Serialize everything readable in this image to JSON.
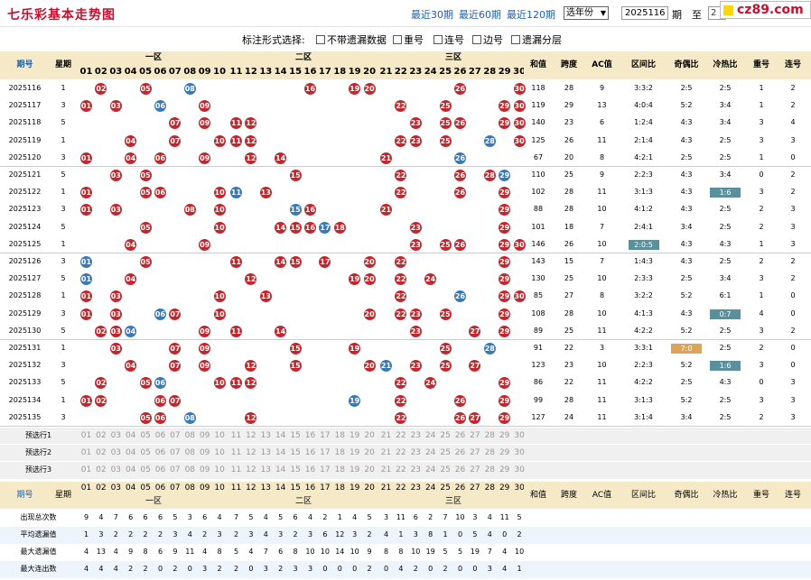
{
  "header": {
    "title": "七乐彩基本走势图",
    "quick": [
      "最近30期",
      "最近60期",
      "最近120期"
    ],
    "year_select": "选年份",
    "from_label": "2025116",
    "issue_label": "期",
    "to_label": "至",
    "to_value": "2",
    "logo": "cz89.com"
  },
  "options": {
    "label": "标注形式选择:",
    "items": [
      "不带遗漏数据",
      "重号",
      "连号",
      "边号",
      "遗漏分层"
    ]
  },
  "table": {
    "head": {
      "issue": "期号",
      "week": "星期",
      "zones": [
        "一区",
        "二区",
        "三区"
      ],
      "stats": [
        "和值",
        "跨度",
        "AC值",
        "区间比",
        "奇偶比",
        "冷热比",
        "重号",
        "连号"
      ]
    },
    "numbers": [
      "01",
      "02",
      "03",
      "04",
      "05",
      "06",
      "07",
      "08",
      "09",
      "10",
      "11",
      "12",
      "13",
      "14",
      "15",
      "16",
      "17",
      "18",
      "19",
      "20",
      "21",
      "22",
      "23",
      "24",
      "25",
      "26",
      "27",
      "28",
      "29",
      "30"
    ],
    "rows": [
      {
        "issue": "2025116",
        "week": "1",
        "balls": [
          2,
          5,
          8,
          16,
          19,
          20,
          26,
          30
        ],
        "blue": [
          8
        ],
        "sum": "118",
        "span": "28",
        "ac": "9",
        "zone": "3:3:2",
        "oe": "2:5",
        "hc": "2:5",
        "rep": "1",
        "con": "2"
      },
      {
        "issue": "2025117",
        "week": "3",
        "balls": [
          1,
          3,
          6,
          9,
          22,
          25,
          29,
          30
        ],
        "blue": [
          6
        ],
        "sum": "119",
        "span": "29",
        "ac": "13",
        "zone": "4:0:4",
        "oe": "5:2",
        "hc": "3:4",
        "rep": "1",
        "con": "2"
      },
      {
        "issue": "2025118",
        "week": "5",
        "balls": [
          7,
          9,
          11,
          12,
          23,
          25,
          26,
          29,
          30
        ],
        "blue": [],
        "sum": "140",
        "span": "23",
        "ac": "6",
        "zone": "1:2:4",
        "oe": "4:3",
        "hc": "3:4",
        "rep": "3",
        "con": "4"
      },
      {
        "issue": "2025119",
        "week": "1",
        "balls": [
          4,
          7,
          10,
          11,
          12,
          22,
          23,
          25,
          28,
          30
        ],
        "blue": [
          28
        ],
        "sum": "125",
        "span": "26",
        "ac": "11",
        "zone": "2:1:4",
        "oe": "4:3",
        "hc": "2:5",
        "rep": "3",
        "con": "3"
      },
      {
        "issue": "2025120",
        "week": "3",
        "balls": [
          1,
          4,
          6,
          9,
          12,
          14,
          21,
          26
        ],
        "blue": [
          26
        ],
        "sum": "67",
        "span": "20",
        "ac": "8",
        "zone": "4:2:1",
        "oe": "2:5",
        "hc": "2:5",
        "rep": "1",
        "con": "0"
      },
      {
        "issue": "2025121",
        "week": "5",
        "balls": [
          3,
          5,
          15,
          22,
          26,
          28,
          29
        ],
        "blue": [
          29
        ],
        "sum": "110",
        "span": "25",
        "ac": "9",
        "zone": "2:2:3",
        "oe": "4:3",
        "hc": "3:4",
        "rep": "0",
        "con": "2"
      },
      {
        "issue": "2025122",
        "week": "1",
        "balls": [
          1,
          5,
          6,
          10,
          11,
          13,
          22,
          26,
          29
        ],
        "blue": [
          11
        ],
        "sum": "102",
        "span": "28",
        "ac": "11",
        "zone": "3:1:3",
        "oe": "4:3",
        "hc": "1:6",
        "rep": "3",
        "con": "2"
      },
      {
        "issue": "2025123",
        "week": "3",
        "balls": [
          1,
          3,
          8,
          10,
          15,
          16,
          21,
          29
        ],
        "blue": [
          15
        ],
        "sum": "88",
        "span": "28",
        "ac": "10",
        "zone": "4:1:2",
        "oe": "4:3",
        "hc": "2:5",
        "rep": "2",
        "con": "3"
      },
      {
        "issue": "2025124",
        "week": "5",
        "balls": [
          5,
          10,
          14,
          15,
          16,
          17,
          18,
          23,
          29
        ],
        "blue": [
          17
        ],
        "sum": "101",
        "span": "18",
        "ac": "7",
        "zone": "2:4:1",
        "oe": "3:4",
        "hc": "2:5",
        "rep": "2",
        "con": "3"
      },
      {
        "issue": "2025125",
        "week": "1",
        "balls": [
          4,
          9,
          23,
          25,
          26,
          29,
          30
        ],
        "blue": [],
        "sum": "146",
        "span": "26",
        "ac": "10",
        "zone": "2:0:5",
        "oe": "4:3",
        "hc": "4:3",
        "rep": "1",
        "con": "3"
      },
      {
        "issue": "2025126",
        "week": "3",
        "balls": [
          1,
          5,
          11,
          14,
          15,
          17,
          20,
          22,
          29
        ],
        "blue": [
          1
        ],
        "sum": "143",
        "span": "15",
        "ac": "7",
        "zone": "1:4:3",
        "oe": "4:3",
        "hc": "2:5",
        "rep": "2",
        "con": "2"
      },
      {
        "issue": "2025127",
        "week": "5",
        "balls": [
          1,
          4,
          12,
          19,
          20,
          22,
          24,
          29
        ],
        "blue": [
          1
        ],
        "sum": "130",
        "span": "25",
        "ac": "10",
        "zone": "2:3:3",
        "oe": "2:5",
        "hc": "3:4",
        "rep": "3",
        "con": "2"
      },
      {
        "issue": "2025128",
        "week": "1",
        "balls": [
          1,
          3,
          10,
          13,
          22,
          26,
          29,
          30
        ],
        "blue": [
          26
        ],
        "sum": "85",
        "span": "27",
        "ac": "8",
        "zone": "3:2:2",
        "oe": "5:2",
        "hc": "6:1",
        "rep": "1",
        "con": "0"
      },
      {
        "issue": "2025129",
        "week": "3",
        "balls": [
          1,
          3,
          6,
          7,
          10,
          20,
          22,
          23,
          25,
          29
        ],
        "blue": [
          6
        ],
        "sum": "108",
        "span": "28",
        "ac": "10",
        "zone": "4:1:3",
        "oe": "4:3",
        "hc": "0:7",
        "rep": "4",
        "con": "0"
      },
      {
        "issue": "2025130",
        "week": "5",
        "balls": [
          2,
          3,
          4,
          9,
          11,
          14,
          23,
          27,
          29
        ],
        "blue": [
          4
        ],
        "sum": "89",
        "span": "25",
        "ac": "11",
        "zone": "4:2:2",
        "oe": "5:2",
        "hc": "2:5",
        "rep": "3",
        "con": "2"
      },
      {
        "issue": "2025131",
        "week": "1",
        "balls": [
          3,
          7,
          9,
          15,
          19,
          25,
          28
        ],
        "blue": [
          28
        ],
        "sum": "91",
        "span": "22",
        "ac": "3",
        "zone": "3:3:1",
        "oe": "7:0",
        "hc": "2:5",
        "rep": "2",
        "con": "0"
      },
      {
        "issue": "2025132",
        "week": "3",
        "balls": [
          4,
          7,
          9,
          12,
          15,
          20,
          21,
          23,
          25,
          27
        ],
        "blue": [
          21
        ],
        "sum": "123",
        "span": "23",
        "ac": "10",
        "zone": "2:2:3",
        "oe": "5:2",
        "hc": "1:6",
        "rep": "3",
        "con": "0"
      },
      {
        "issue": "2025133",
        "week": "5",
        "balls": [
          2,
          5,
          6,
          10,
          11,
          12,
          22,
          24,
          29
        ],
        "blue": [
          6
        ],
        "sum": "86",
        "span": "22",
        "ac": "11",
        "zone": "4:2:2",
        "oe": "2:5",
        "hc": "4:3",
        "rep": "0",
        "con": "3"
      },
      {
        "issue": "2025134",
        "week": "1",
        "balls": [
          1,
          2,
          6,
          7,
          19,
          22,
          26,
          29
        ],
        "blue": [
          19
        ],
        "sum": "99",
        "span": "28",
        "ac": "11",
        "zone": "3:1:3",
        "oe": "5:2",
        "hc": "2:5",
        "rep": "3",
        "con": "3"
      },
      {
        "issue": "2025135",
        "week": "3",
        "balls": [
          5,
          6,
          8,
          12,
          22,
          26,
          27,
          29
        ],
        "blue": [
          8
        ],
        "sum": "127",
        "span": "24",
        "ac": "11",
        "zone": "3:1:4",
        "oe": "3:4",
        "hc": "2:5",
        "rep": "2",
        "con": "3"
      }
    ],
    "hc_tags": {
      "2025122": "1:6",
      "2025129": "0:7",
      "2025132": "1:6"
    },
    "oe_tags": {
      "2025131": "7:0"
    },
    "zone_tags": {
      "2025125": "2:0:5"
    },
    "predict": [
      "预选行1",
      "预选行2",
      "预选行3"
    ],
    "stats_rows": [
      {
        "label": "出现总次数",
        "vals": [
          "9",
          "4",
          "7",
          "6",
          "6",
          "6",
          "5",
          "3",
          "6",
          "4",
          "7",
          "5",
          "4",
          "5",
          "6",
          "4",
          "2",
          "1",
          "4",
          "5",
          "3",
          "11",
          "6",
          "2",
          "7",
          "10",
          "3",
          "4",
          "11",
          "5"
        ]
      },
      {
        "label": "平均遗漏值",
        "vals": [
          "1",
          "3",
          "2",
          "2",
          "2",
          "2",
          "3",
          "4",
          "2",
          "3",
          "2",
          "3",
          "4",
          "3",
          "2",
          "3",
          "6",
          "12",
          "3",
          "2",
          "4",
          "1",
          "3",
          "8",
          "1",
          "0",
          "5",
          "4",
          "0",
          "2"
        ]
      },
      {
        "label": "最大遗漏值",
        "vals": [
          "4",
          "13",
          "4",
          "9",
          "8",
          "6",
          "9",
          "11",
          "4",
          "8",
          "5",
          "4",
          "7",
          "6",
          "8",
          "10",
          "10",
          "14",
          "10",
          "9",
          "8",
          "8",
          "10",
          "19",
          "5",
          "5",
          "19",
          "7",
          "4",
          "10"
        ]
      },
      {
        "label": "最大连出数",
        "vals": [
          "4",
          "4",
          "4",
          "2",
          "2",
          "0",
          "2",
          "0",
          "3",
          "2",
          "2",
          "0",
          "3",
          "2",
          "3",
          "3",
          "0",
          "0",
          "0",
          "2",
          "0",
          "4",
          "2",
          "0",
          "2",
          "0",
          "0",
          "3",
          "4",
          "1"
        ]
      }
    ]
  }
}
